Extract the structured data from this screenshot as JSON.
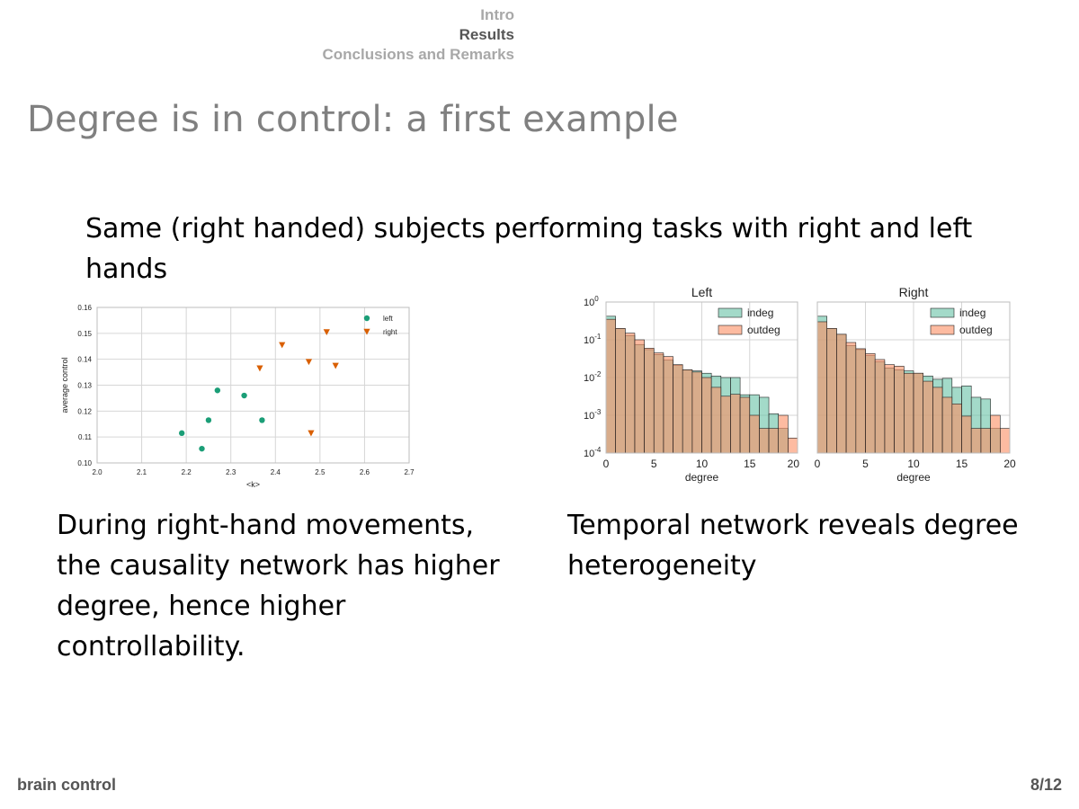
{
  "nav": {
    "sections": [
      "Intro",
      "Results",
      "Conclusions and Remarks"
    ],
    "current": "Results"
  },
  "slide": {
    "title": "Degree is in control: a first example",
    "lead": "Same (right handed) subjects performing tasks with right and left hands",
    "caption_left": "During right-hand movements, the causality network has higher degree, hence higher controllability.",
    "caption_right": "Temporal network reveals degree heterogeneity"
  },
  "footer": {
    "left": "brain control",
    "right": "8/12"
  },
  "chart_data": [
    {
      "type": "scatter",
      "title": "",
      "xlabel": "<k>",
      "ylabel": "average control",
      "xlim": [
        2.0,
        2.7
      ],
      "ylim": [
        0.1,
        0.16
      ],
      "xticks": [
        "2.0",
        "2.1",
        "2.2",
        "2.3",
        "2.4",
        "2.5",
        "2.6",
        "2.7"
      ],
      "yticks": [
        "0.10",
        "0.11",
        "0.12",
        "0.13",
        "0.14",
        "0.15",
        "0.16"
      ],
      "grid": true,
      "legend_position": "top-right",
      "series": [
        {
          "name": "left",
          "marker": "circle",
          "color": "#1b9e77",
          "points": [
            [
              2.19,
              0.1115
            ],
            [
              2.235,
              0.1055
            ],
            [
              2.25,
              0.1165
            ],
            [
              2.27,
              0.128
            ],
            [
              2.33,
              0.126
            ],
            [
              2.37,
              0.1165
            ]
          ]
        },
        {
          "name": "right",
          "marker": "triangle-down",
          "color": "#d95f02",
          "points": [
            [
              2.365,
              0.1365
            ],
            [
              2.415,
              0.1455
            ],
            [
              2.475,
              0.139
            ],
            [
              2.48,
              0.1115
            ],
            [
              2.515,
              0.1505
            ],
            [
              2.535,
              0.1375
            ]
          ]
        }
      ]
    },
    {
      "type": "bar",
      "subtype": "histogram",
      "title": "Left",
      "xlabel": "degree",
      "ylabel": "",
      "yscale": "log",
      "xlim": [
        0,
        20
      ],
      "ylim": [
        0.0001,
        1
      ],
      "xticks": [
        "0",
        "5",
        "10",
        "15",
        "20"
      ],
      "yticks": [
        {
          "base": "10",
          "exp": "0"
        },
        {
          "base": "10",
          "exp": "-1"
        },
        {
          "base": "10",
          "exp": "-2"
        },
        {
          "base": "10",
          "exp": "-3"
        },
        {
          "base": "10",
          "exp": "-4"
        }
      ],
      "grid": true,
      "legend_position": "top-right",
      "bin_width": 1,
      "series": [
        {
          "name": "indeg",
          "color": "#66c2a5",
          "values": [
            0.42,
            0.2,
            0.13,
            0.075,
            0.055,
            0.041,
            0.029,
            0.021,
            0.016,
            0.015,
            0.013,
            0.011,
            0.01,
            0.01,
            0.0035,
            0.0035,
            0.003,
            0.0011,
            0.00045
          ]
        },
        {
          "name": "outdeg",
          "color": "#fc8d62",
          "values": [
            0.35,
            0.2,
            0.15,
            0.1,
            0.06,
            0.045,
            0.036,
            0.022,
            0.016,
            0.014,
            0.01,
            0.0055,
            0.0032,
            0.0036,
            0.003,
            0.001,
            0.00045,
            0.00045,
            0.001,
            0.00025
          ]
        }
      ]
    },
    {
      "type": "bar",
      "subtype": "histogram",
      "title": "Right",
      "xlabel": "degree",
      "ylabel": "",
      "yscale": "log",
      "xlim": [
        0,
        20
      ],
      "ylim": [
        0.0001,
        1
      ],
      "xticks": [
        "0",
        "5",
        "10",
        "15",
        "20"
      ],
      "grid": true,
      "legend_position": "top-right",
      "bin_width": 1,
      "series": [
        {
          "name": "indeg",
          "color": "#66c2a5",
          "values": [
            0.42,
            0.2,
            0.14,
            0.07,
            0.055,
            0.038,
            0.026,
            0.018,
            0.016,
            0.015,
            0.013,
            0.011,
            0.009,
            0.0095,
            0.0055,
            0.006,
            0.003,
            0.0027,
            0.00045
          ]
        },
        {
          "name": "outdeg",
          "color": "#fc8d62",
          "values": [
            0.3,
            0.2,
            0.14,
            0.085,
            0.058,
            0.043,
            0.03,
            0.022,
            0.02,
            0.013,
            0.013,
            0.008,
            0.0055,
            0.003,
            0.002,
            0.00095,
            0.00045,
            0.00045,
            0.001,
            0.00045
          ]
        }
      ]
    }
  ]
}
